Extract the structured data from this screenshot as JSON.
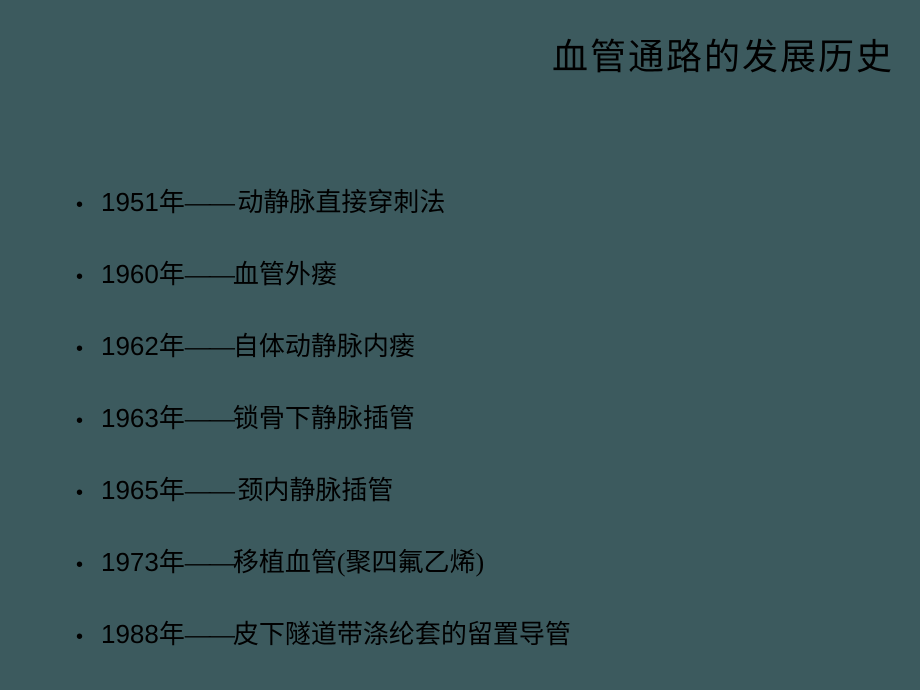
{
  "title": "血管通路的发展历史",
  "background_color": "#3c5a5e",
  "text_color": "#000000",
  "title_fontsize": 36,
  "item_fontsize": 26,
  "items": [
    {
      "year": "1951",
      "dash": "—— ",
      "text": "动静脉直接穿刺法"
    },
    {
      "year": "1960",
      "dash": "——",
      "text": "血管外瘘"
    },
    {
      "year": "1962",
      "dash": "——",
      "text": "自体动静脉内瘘"
    },
    {
      "year": "1963",
      "dash": "——",
      "text": "锁骨下静脉插管"
    },
    {
      "year": "1965",
      "dash": "—— ",
      "text": "颈内静脉插管"
    },
    {
      "year": "1973",
      "dash": "——",
      "text": "移植血管(聚四氟乙烯)"
    },
    {
      "year": "1988",
      "dash": "——",
      "text": "皮下隧道带涤纶套的留置导管"
    }
  ]
}
